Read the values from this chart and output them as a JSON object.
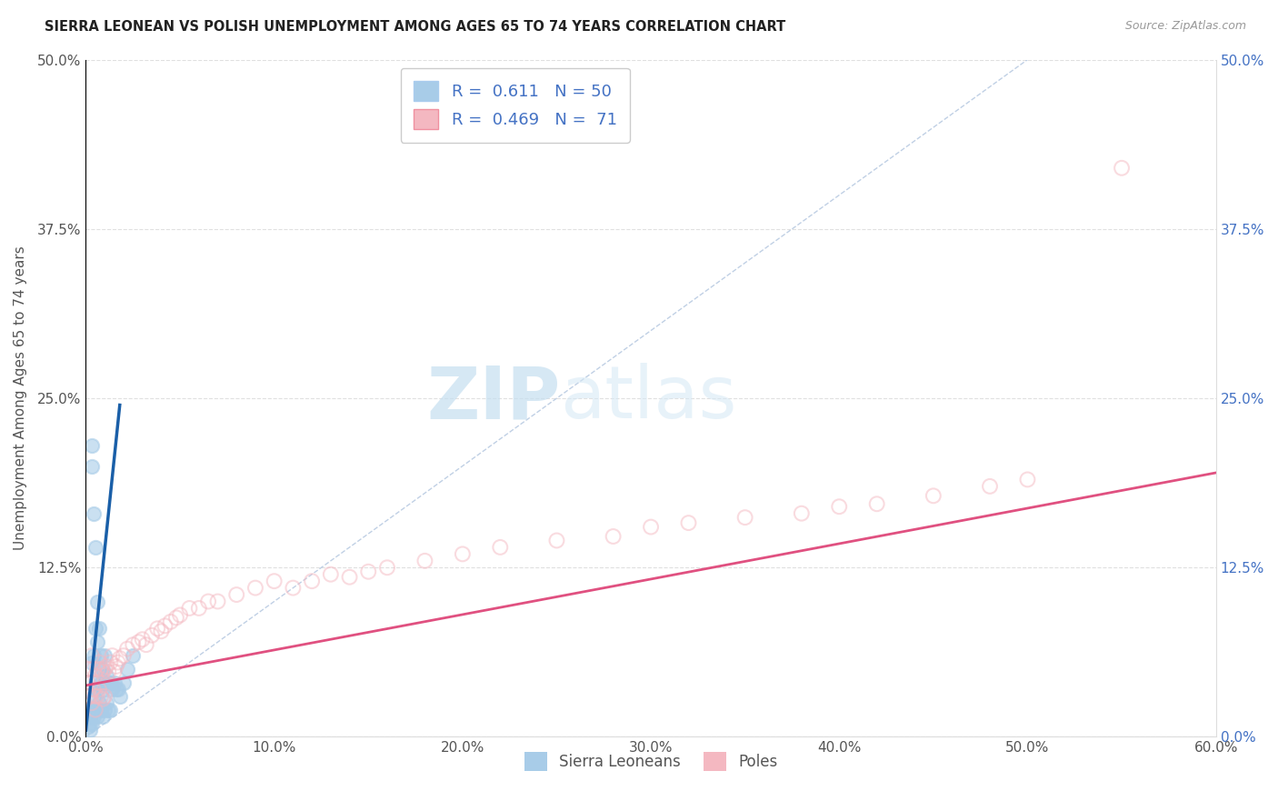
{
  "title": "SIERRA LEONEAN VS POLISH UNEMPLOYMENT AMONG AGES 65 TO 74 YEARS CORRELATION CHART",
  "source": "Source: ZipAtlas.com",
  "ylabel": "Unemployment Among Ages 65 to 74 years",
  "xlim": [
    0,
    0.6
  ],
  "ylim": [
    0,
    0.5
  ],
  "xticks": [
    0.0,
    0.1,
    0.2,
    0.3,
    0.4,
    0.5,
    0.6
  ],
  "yticks": [
    0.0,
    0.125,
    0.25,
    0.375,
    0.5
  ],
  "xticklabels": [
    "0.0%",
    "10.0%",
    "20.0%",
    "30.0%",
    "40.0%",
    "50.0%",
    "60.0%"
  ],
  "yticklabels": [
    "0.0%",
    "12.5%",
    "25.0%",
    "37.5%",
    "50.0%"
  ],
  "blue_color": "#a8cce8",
  "pink_color": "#f4b8c1",
  "blue_trend_color": "#1a5fa8",
  "pink_trend_color": "#e05080",
  "legend_blue_label": "Sierra Leoneans",
  "legend_pink_label": "Poles",
  "R_blue": 0.611,
  "N_blue": 50,
  "R_pink": 0.469,
  "N_pink": 71,
  "watermark_zip": "ZIP",
  "watermark_atlas": "atlas",
  "blue_scatter_x": [
    0.001,
    0.001,
    0.001,
    0.002,
    0.002,
    0.002,
    0.002,
    0.003,
    0.003,
    0.003,
    0.003,
    0.003,
    0.004,
    0.004,
    0.004,
    0.004,
    0.005,
    0.005,
    0.005,
    0.005,
    0.006,
    0.006,
    0.006,
    0.006,
    0.007,
    0.007,
    0.007,
    0.008,
    0.008,
    0.008,
    0.009,
    0.009,
    0.009,
    0.01,
    0.01,
    0.01,
    0.011,
    0.011,
    0.012,
    0.012,
    0.013,
    0.013,
    0.014,
    0.015,
    0.016,
    0.017,
    0.018,
    0.02,
    0.022,
    0.025
  ],
  "blue_scatter_y": [
    0.02,
    0.015,
    0.008,
    0.02,
    0.015,
    0.01,
    0.005,
    0.2,
    0.215,
    0.055,
    0.02,
    0.01,
    0.165,
    0.06,
    0.03,
    0.015,
    0.14,
    0.08,
    0.04,
    0.02,
    0.1,
    0.07,
    0.035,
    0.015,
    0.08,
    0.05,
    0.025,
    0.06,
    0.04,
    0.02,
    0.05,
    0.035,
    0.015,
    0.06,
    0.04,
    0.02,
    0.045,
    0.025,
    0.04,
    0.02,
    0.04,
    0.02,
    0.035,
    0.04,
    0.035,
    0.035,
    0.03,
    0.04,
    0.05,
    0.06
  ],
  "pink_scatter_x": [
    0.001,
    0.001,
    0.002,
    0.002,
    0.003,
    0.003,
    0.003,
    0.004,
    0.004,
    0.005,
    0.005,
    0.005,
    0.006,
    0.006,
    0.007,
    0.007,
    0.008,
    0.008,
    0.009,
    0.009,
    0.01,
    0.01,
    0.011,
    0.012,
    0.013,
    0.014,
    0.015,
    0.016,
    0.017,
    0.018,
    0.02,
    0.022,
    0.025,
    0.028,
    0.03,
    0.032,
    0.035,
    0.038,
    0.04,
    0.042,
    0.045,
    0.048,
    0.05,
    0.055,
    0.06,
    0.065,
    0.07,
    0.08,
    0.09,
    0.1,
    0.11,
    0.12,
    0.13,
    0.14,
    0.15,
    0.16,
    0.18,
    0.2,
    0.22,
    0.25,
    0.28,
    0.3,
    0.32,
    0.35,
    0.38,
    0.4,
    0.42,
    0.45,
    0.48,
    0.5,
    0.55
  ],
  "pink_scatter_y": [
    0.04,
    0.03,
    0.05,
    0.03,
    0.06,
    0.04,
    0.025,
    0.05,
    0.035,
    0.045,
    0.03,
    0.02,
    0.05,
    0.03,
    0.055,
    0.035,
    0.05,
    0.03,
    0.048,
    0.028,
    0.05,
    0.03,
    0.052,
    0.048,
    0.055,
    0.06,
    0.048,
    0.052,
    0.055,
    0.058,
    0.06,
    0.065,
    0.068,
    0.07,
    0.072,
    0.068,
    0.075,
    0.08,
    0.078,
    0.082,
    0.085,
    0.088,
    0.09,
    0.095,
    0.095,
    0.1,
    0.1,
    0.105,
    0.11,
    0.115,
    0.11,
    0.115,
    0.12,
    0.118,
    0.122,
    0.125,
    0.13,
    0.135,
    0.14,
    0.145,
    0.148,
    0.155,
    0.158,
    0.162,
    0.165,
    0.17,
    0.172,
    0.178,
    0.185,
    0.19,
    0.42
  ],
  "blue_trend_x": [
    0.0,
    0.018
  ],
  "blue_trend_y": [
    0.005,
    0.245
  ],
  "pink_trend_x": [
    0.0,
    0.6
  ],
  "pink_trend_y": [
    0.038,
    0.195
  ],
  "ref_line_x": [
    0.0,
    0.5
  ],
  "ref_line_y": [
    0.0,
    0.5
  ],
  "grid_color": "#e0e0e0",
  "ref_line_color": "#b0c4de",
  "background_color": "#ffffff"
}
